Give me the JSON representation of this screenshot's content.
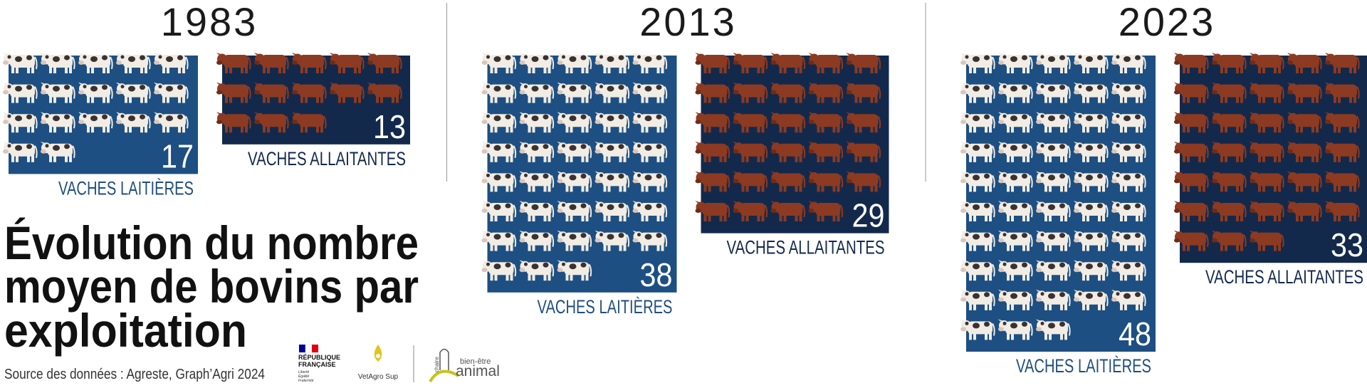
{
  "chart_data": {
    "type": "pictogram",
    "title": [
      "Évolution du nombre",
      "moyen de bovins par",
      "exploitation"
    ],
    "categories": [
      "1983",
      "2013",
      "2023"
    ],
    "series": [
      {
        "name": "VACHES LAITIÈRES",
        "color": "#1d4f82",
        "label_color": "#1f4e80",
        "icon_color": "#f1ece4",
        "values": [
          17,
          38,
          48
        ]
      },
      {
        "name": "VACHES ALLAITANTES",
        "color": "#13294b",
        "label_color": "#13294b",
        "icon_color": "#8c3a21",
        "values": [
          13,
          29,
          33
        ]
      }
    ],
    "source": "Source des données : Agreste, Graph’Agri 2024"
  },
  "logos": {
    "republique": [
      "RÉPUBLIQUE",
      "FRANÇAISE"
    ],
    "devise": [
      "Liberté",
      "Égalité",
      "Fraternité"
    ],
    "vetagro": "VetAgro Sup",
    "chaire": [
      "chaire",
      "bien-être",
      "animal"
    ]
  }
}
